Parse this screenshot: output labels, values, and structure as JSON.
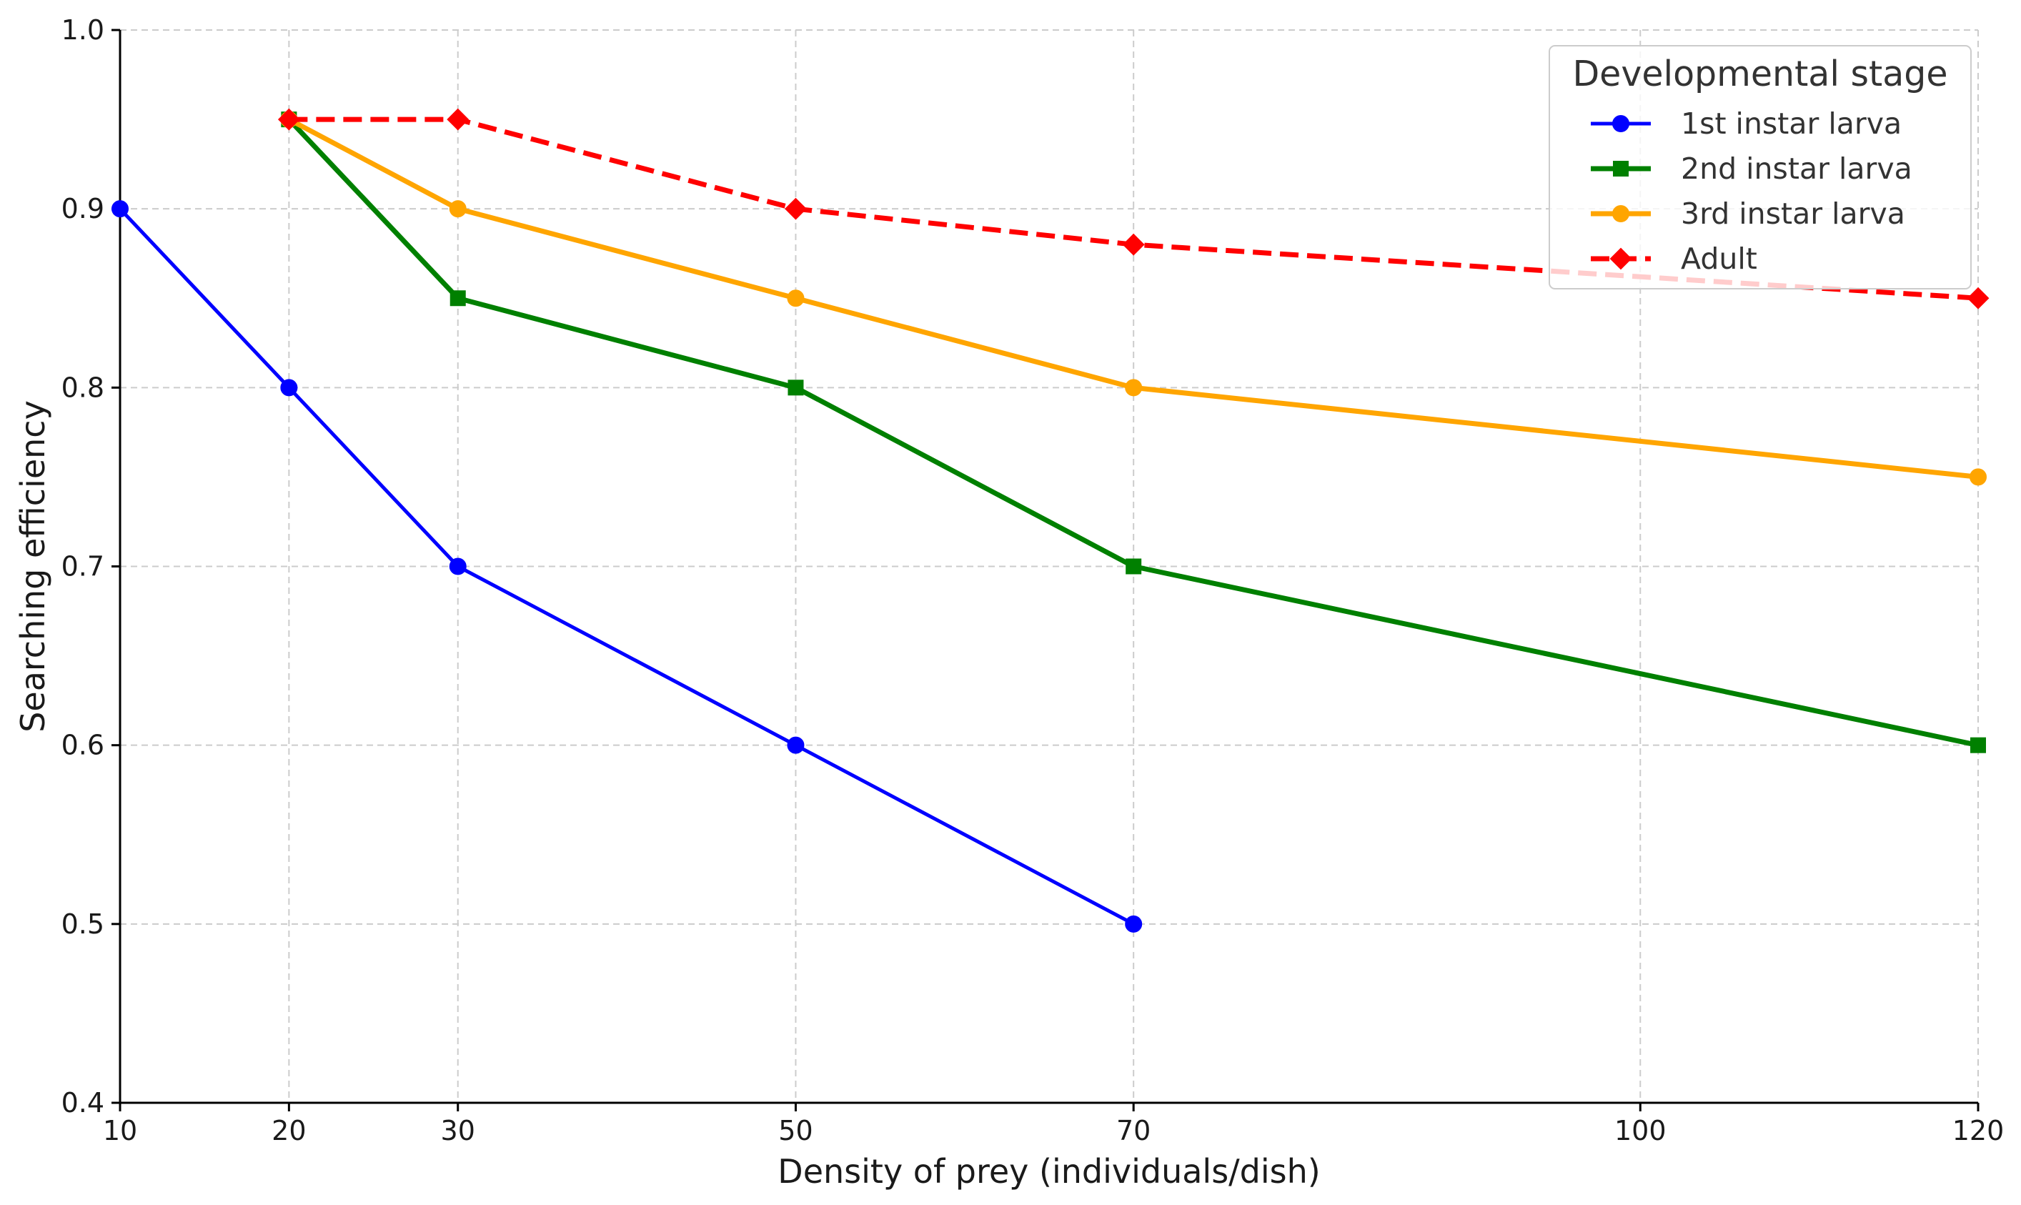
{
  "chart_data": {
    "type": "line",
    "title": "",
    "xlabel": "Density of prey (individuals/dish)",
    "ylabel": "Searching efficiency",
    "xlim": [
      10,
      120
    ],
    "ylim": [
      0.4,
      1.0
    ],
    "x_ticks": [
      10,
      20,
      30,
      50,
      70,
      100,
      120
    ],
    "x_tick_labels": [
      "10",
      "20",
      "30",
      "50",
      "70",
      "100",
      "120"
    ],
    "y_ticks": [
      0.4,
      0.5,
      0.6,
      0.7,
      0.8,
      0.9,
      1.0
    ],
    "y_tick_labels": [
      "0.4",
      "0.5",
      "0.6",
      "0.7",
      "0.8",
      "0.9",
      "1.0"
    ],
    "grid": true,
    "legend": {
      "title": "Developmental stage",
      "placement": "top-right"
    },
    "series": [
      {
        "name": "1st instar larva",
        "color": "#0000ff",
        "marker": "circle",
        "linestyle": "solid",
        "x": [
          10,
          20,
          30,
          50,
          70
        ],
        "values": [
          0.9,
          0.8,
          0.7,
          0.6,
          0.5
        ]
      },
      {
        "name": "2nd instar larva",
        "color": "#008000",
        "marker": "square",
        "linestyle": "solid",
        "x": [
          20,
          30,
          50,
          70,
          120
        ],
        "values": [
          0.95,
          0.85,
          0.8,
          0.7,
          0.6
        ]
      },
      {
        "name": "3rd instar larva",
        "color": "#ffa500",
        "marker": "circle",
        "linestyle": "solid",
        "x": [
          20,
          30,
          50,
          70,
          120
        ],
        "values": [
          0.95,
          0.9,
          0.85,
          0.8,
          0.75
        ]
      },
      {
        "name": "Adult",
        "color": "#ff0000",
        "marker": "diamond",
        "linestyle": "dashed",
        "x": [
          20,
          30,
          50,
          70,
          120
        ],
        "values": [
          0.95,
          0.95,
          0.9,
          0.88,
          0.85
        ]
      }
    ]
  }
}
